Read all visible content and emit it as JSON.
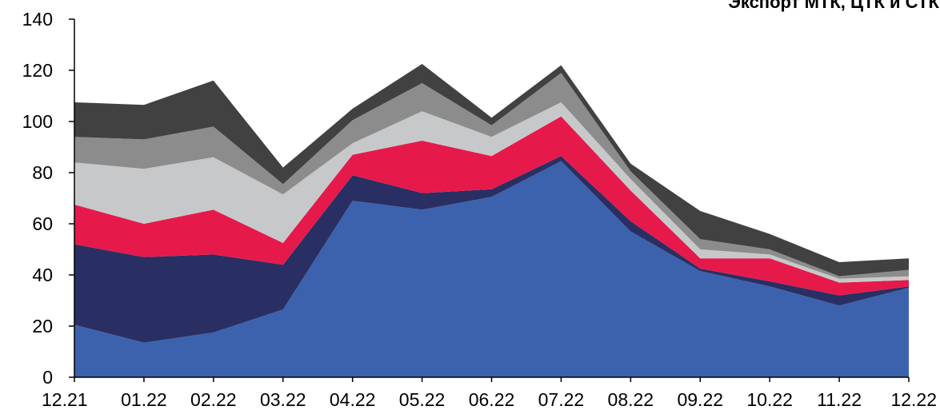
{
  "chart_data": {
    "type": "area",
    "stacked": true,
    "title": "Экспорт МТК, ЦТК и СТК,",
    "xlabel": "",
    "ylabel": "",
    "ylim": [
      0,
      140
    ],
    "yticks": [
      0,
      20,
      40,
      60,
      80,
      100,
      120,
      140
    ],
    "categories": [
      "12.21",
      "01.22",
      "02.22",
      "03.22",
      "04.22",
      "05.22",
      "06.22",
      "07.22",
      "08.22",
      "09.22",
      "10.22",
      "11.22",
      "12.22"
    ],
    "series": [
      {
        "color": "#3c62ad",
        "values": [
          20.5,
          13.5,
          17.5,
          26.5,
          69,
          65.5,
          70.5,
          84.5,
          57,
          41.5,
          35.5,
          28,
          35
        ]
      },
      {
        "color": "#2a2f63",
        "values": [
          31.5,
          33.5,
          30.5,
          17.5,
          10,
          6.5,
          3,
          2,
          4,
          1,
          2,
          4,
          0.5
        ]
      },
      {
        "color": "#e51a4b",
        "values": [
          15.5,
          13,
          17.5,
          8.5,
          8,
          20.5,
          13,
          15.5,
          12,
          4,
          9,
          5,
          2.5
        ]
      },
      {
        "color": "#c7c8ca",
        "values": [
          16.5,
          21.5,
          20.5,
          19,
          4.5,
          11.5,
          7.5,
          5.5,
          4.5,
          3.5,
          1.5,
          1.5,
          1.5
        ]
      },
      {
        "color": "#8c8c8c",
        "values": [
          10,
          11.5,
          12,
          4,
          9,
          11,
          4.5,
          11.5,
          3,
          4,
          2,
          1,
          2.5
        ]
      },
      {
        "color": "#414141",
        "values": [
          13.5,
          13.5,
          18,
          6.5,
          4.5,
          7.5,
          3,
          3,
          3,
          11,
          6,
          5.5,
          4.5
        ]
      }
    ],
    "grid": false,
    "legend": "none"
  }
}
